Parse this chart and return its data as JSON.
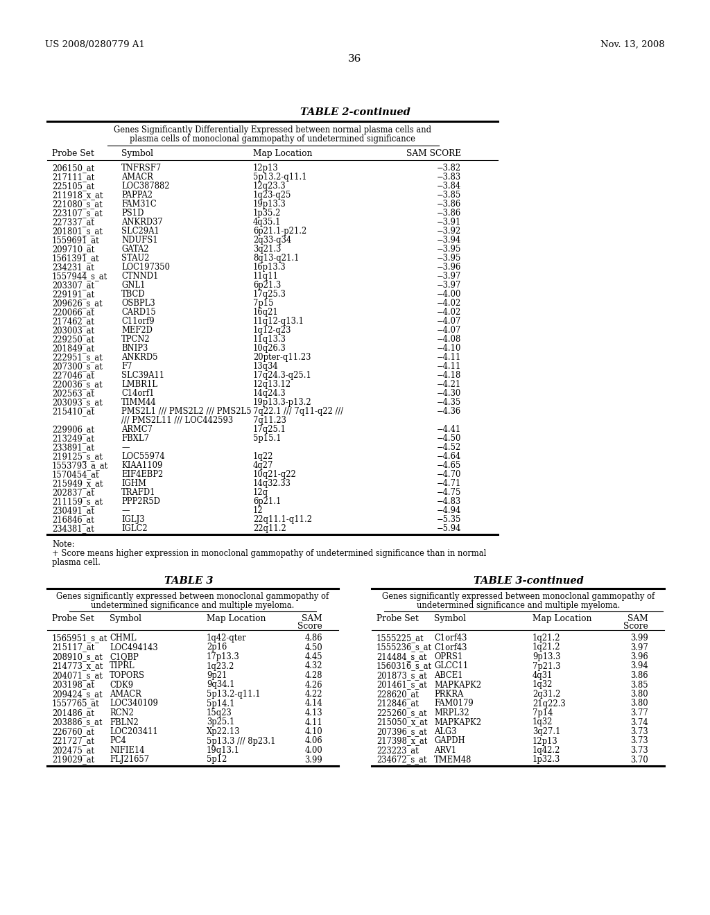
{
  "header_left": "US 2008/0280779 A1",
  "header_right": "Nov. 13, 2008",
  "page_number": "36",
  "table2_title": "TABLE 2-continued",
  "table2_subtitle1": "Genes Significantly Differentially Expressed between normal plasma cells and",
  "table2_subtitle2": "plasma cells of monoclonal gammopathy of undetermined significance",
  "table2_cols": [
    "Probe Set",
    "Symbol",
    "Map Location",
    "SAM SCORE"
  ],
  "table2_data": [
    [
      "206150_at",
      "TNFRSF7",
      "12p13",
      "−3.82"
    ],
    [
      "217111_at",
      "AMACR",
      "5p13.2-q11.1",
      "−3.83"
    ],
    [
      "225105_at",
      "LOC387882",
      "12q23.3",
      "−3.84"
    ],
    [
      "211918_x_at",
      "PAPPA2",
      "1q23-q25",
      "−3.85"
    ],
    [
      "221080_s_at",
      "FAM31C",
      "19p13.3",
      "−3.86"
    ],
    [
      "223107_s_at",
      "PS1D",
      "1p35.2",
      "−3.86"
    ],
    [
      "227337_at",
      "ANKRD37",
      "4q35.1",
      "−3.91"
    ],
    [
      "201801_s_at",
      "SLC29A1",
      "6p21.1-p21.2",
      "−3.92"
    ],
    [
      "1559691_at",
      "NDUFS1",
      "2q33-q34",
      "−3.94"
    ],
    [
      "209710_at",
      "GATA2",
      "3q21.3",
      "−3.95"
    ],
    [
      "1561391_at",
      "STAU2",
      "8q13-q21.1",
      "−3.95"
    ],
    [
      "234231_at",
      "LOC197350",
      "16p13.3",
      "−3.96"
    ],
    [
      "1557944_s_at",
      "CTNND1",
      "11q11",
      "−3.97"
    ],
    [
      "203307_at",
      "GNL1",
      "6p21.3",
      "−3.97"
    ],
    [
      "229191_at",
      "TBCD",
      "17q25.3",
      "−4.00"
    ],
    [
      "209626_s_at",
      "OSBPL3",
      "7p15",
      "−4.02"
    ],
    [
      "220066_at",
      "CARD15",
      "16q21",
      "−4.02"
    ],
    [
      "217462_at",
      "C11orf9",
      "11q12-q13.1",
      "−4.07"
    ],
    [
      "203003_at",
      "MEF2D",
      "1q12-q23",
      "−4.07"
    ],
    [
      "229250_at",
      "TPCN2",
      "11q13.3",
      "−4.08"
    ],
    [
      "201849_at",
      "BNIP3",
      "10q26.3",
      "−4.10"
    ],
    [
      "222951_s_at",
      "ANKRD5",
      "20pter-q11.23",
      "−4.11"
    ],
    [
      "207300_s_at",
      "F7",
      "13q34",
      "−4.11"
    ],
    [
      "227046_at",
      "SLC39A11",
      "17q24.3-q25.1",
      "−4.18"
    ],
    [
      "220036_s_at",
      "LMBR1L",
      "12q13.12",
      "−4.21"
    ],
    [
      "202563_at",
      "C14orf1",
      "14q24.3",
      "−4.30"
    ],
    [
      "203093_s_at",
      "TIMM44",
      "19p13.3-p13.2",
      "−4.35"
    ],
    [
      "215410_at",
      "PMS2L1 /// PMS2L2 /// PMS2L5\n/// PMS2L11 /// LOC442593",
      "7q22.1 /// 7q11-q22 ///\n7q11.23",
      "−4.36"
    ],
    [
      "229906_at",
      "ARMC7",
      "17q25.1",
      "−4.41"
    ],
    [
      "213249_at",
      "FBXL7",
      "5p15.1",
      "−4.50"
    ],
    [
      "233891_at",
      "—",
      "",
      "−4.52"
    ],
    [
      "219125_s_at",
      "LOC55974",
      "1q22",
      "−4.64"
    ],
    [
      "1553793_a_at",
      "KIAA1109",
      "4q27",
      "−4.65"
    ],
    [
      "1570454_at",
      "EIF4EBP2",
      "10q21-q22",
      "−4.70"
    ],
    [
      "215949_x_at",
      "IGHM",
      "14q32.33",
      "−4.71"
    ],
    [
      "202837_at",
      "TRAFD1",
      "12q",
      "−4.75"
    ],
    [
      "211159_s_at",
      "PPP2R5D",
      "6p21.1",
      "−4.83"
    ],
    [
      "230491_at",
      "—",
      "12",
      "−4.94"
    ],
    [
      "216846_at",
      "IGLJ3",
      "22q11.1-q11.2",
      "−5.35"
    ],
    [
      "234381_at",
      "IGLC2",
      "22q11.2",
      "−5.94"
    ]
  ],
  "table3_title": "TABLE 3",
  "table3cont_title": "TABLE 3-continued",
  "table3_subtitle1": "Genes significantly expressed between monoclonal gammopathy of",
  "table3_subtitle2": "undetermined significance and multiple myeloma.",
  "table3_cols": [
    "Probe Set",
    "Symbol",
    "Map Location",
    "SAM\nScore"
  ],
  "table3_data": [
    [
      "1565951_s_at",
      "CHML",
      "1q42-qter",
      "4.86"
    ],
    [
      "215117_at",
      "LOC494143",
      "2p16",
      "4.50"
    ],
    [
      "208910_s_at",
      "C1QBP",
      "17p13.3",
      "4.45"
    ],
    [
      "214773_x_at",
      "TIPRL",
      "1q23.2",
      "4.32"
    ],
    [
      "204071_s_at",
      "TOPORS",
      "9p21",
      "4.28"
    ],
    [
      "203198_at",
      "CDK9",
      "9q34.1",
      "4.26"
    ],
    [
      "209424_s_at",
      "AMACR",
      "5p13.2-q11.1",
      "4.22"
    ],
    [
      "1557765_at",
      "LOC340109",
      "5p14.1",
      "4.14"
    ],
    [
      "201486_at",
      "RCN2",
      "15q23",
      "4.13"
    ],
    [
      "203886_s_at",
      "FBLN2",
      "3p25.1",
      "4.11"
    ],
    [
      "226760_at",
      "LOC203411",
      "Xp22.13",
      "4.10"
    ],
    [
      "221727_at",
      "PC4",
      "5p13.3 /// 8p23.1",
      "4.06"
    ],
    [
      "202475_at",
      "NIFIE14",
      "19q13.1",
      "4.00"
    ],
    [
      "219029_at",
      "FLJ21657",
      "5p12",
      "3.99"
    ]
  ],
  "table3cont_data": [
    [
      "1555225_at",
      "C1orf43",
      "1q21.2",
      "3.99"
    ],
    [
      "1555236_s_at",
      "C1orf43",
      "1q21.2",
      "3.97"
    ],
    [
      "214484_s_at",
      "OPRS1",
      "9p13.3",
      "3.96"
    ],
    [
      "1560316_s_at",
      "GLCC11",
      "7p21.3",
      "3.94"
    ],
    [
      "201873_s_at",
      "ABCE1",
      "4q31",
      "3.86"
    ],
    [
      "201461_s_at",
      "MAPKAPK2",
      "1q32",
      "3.85"
    ],
    [
      "228620_at",
      "PRKRA",
      "2q31.2",
      "3.80"
    ],
    [
      "212846_at",
      "FAM0179",
      "21q22.3",
      "3.80"
    ],
    [
      "225260_s_at",
      "MRPL32",
      "7p14",
      "3.77"
    ],
    [
      "215050_x_at",
      "MAPKAPK2",
      "1q32",
      "3.74"
    ],
    [
      "207396_s_at",
      "ALG3",
      "3q27.1",
      "3.73"
    ],
    [
      "217398_x_at",
      "GAPDH",
      "12p13",
      "3.73"
    ],
    [
      "223223_at",
      "ARV1",
      "1q42.2",
      "3.73"
    ],
    [
      "234672_s_at",
      "TMEM48",
      "1p32.3",
      "3.70"
    ]
  ]
}
